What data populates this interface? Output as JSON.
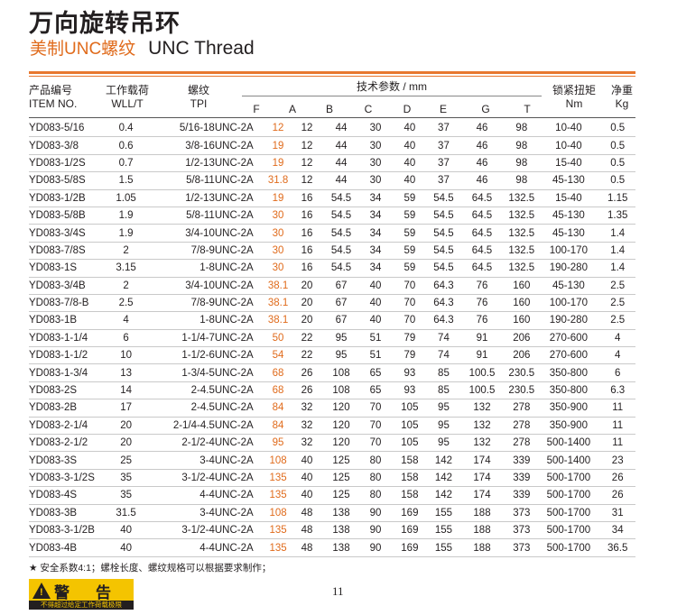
{
  "title": "万向旋转吊环",
  "subtitle_cn": "美制UNC螺纹",
  "subtitle_en": "UNC Thread",
  "headers": {
    "item_cn": "产品编号",
    "item_en": "ITEM NO.",
    "wll_cn": "工作载荷",
    "wll_en": "WLL/T",
    "tpi_cn": "螺纹",
    "tpi_en": "TPI",
    "params": "技术参数 / mm",
    "cols": [
      "F",
      "A",
      "B",
      "C",
      "D",
      "E",
      "G",
      "T"
    ],
    "torque_cn": "锁紧扭矩",
    "torque_en": "Nm",
    "weight_cn": "净重",
    "weight_en": "Kg"
  },
  "rows": [
    [
      "YD083-5/16",
      "0.4",
      "5/16-18UNC-2A",
      "12",
      "12",
      "44",
      "30",
      "40",
      "37",
      "46",
      "98",
      "10-40",
      "0.5"
    ],
    [
      "YD083-3/8",
      "0.6",
      "3/8-16UNC-2A",
      "19",
      "12",
      "44",
      "30",
      "40",
      "37",
      "46",
      "98",
      "10-40",
      "0.5"
    ],
    [
      "YD083-1/2S",
      "0.7",
      "1/2-13UNC-2A",
      "19",
      "12",
      "44",
      "30",
      "40",
      "37",
      "46",
      "98",
      "15-40",
      "0.5"
    ],
    [
      "YD083-5/8S",
      "1.5",
      "5/8-11UNC-2A",
      "31.8",
      "12",
      "44",
      "30",
      "40",
      "37",
      "46",
      "98",
      "45-130",
      "0.5"
    ],
    [
      "YD083-1/2B",
      "1.05",
      "1/2-13UNC-2A",
      "19",
      "16",
      "54.5",
      "34",
      "59",
      "54.5",
      "64.5",
      "132.5",
      "15-40",
      "1.15"
    ],
    [
      "YD083-5/8B",
      "1.9",
      "5/8-11UNC-2A",
      "30",
      "16",
      "54.5",
      "34",
      "59",
      "54.5",
      "64.5",
      "132.5",
      "45-130",
      "1.35"
    ],
    [
      "YD083-3/4S",
      "1.9",
      "3/4-10UNC-2A",
      "30",
      "16",
      "54.5",
      "34",
      "59",
      "54.5",
      "64.5",
      "132.5",
      "45-130",
      "1.4"
    ],
    [
      "YD083-7/8S",
      "2",
      "7/8-9UNC-2A",
      "30",
      "16",
      "54.5",
      "34",
      "59",
      "54.5",
      "64.5",
      "132.5",
      "100-170",
      "1.4"
    ],
    [
      "YD083-1S",
      "3.15",
      "1-8UNC-2A",
      "30",
      "16",
      "54.5",
      "34",
      "59",
      "54.5",
      "64.5",
      "132.5",
      "190-280",
      "1.4"
    ],
    [
      "YD083-3/4B",
      "2",
      "3/4-10UNC-2A",
      "38.1",
      "20",
      "67",
      "40",
      "70",
      "64.3",
      "76",
      "160",
      "45-130",
      "2.5"
    ],
    [
      "YD083-7/8-B",
      "2.5",
      "7/8-9UNC-2A",
      "38.1",
      "20",
      "67",
      "40",
      "70",
      "64.3",
      "76",
      "160",
      "100-170",
      "2.5"
    ],
    [
      "YD083-1B",
      "4",
      "1-8UNC-2A",
      "38.1",
      "20",
      "67",
      "40",
      "70",
      "64.3",
      "76",
      "160",
      "190-280",
      "2.5"
    ],
    [
      "YD083-1-1/4",
      "6",
      "1-1/4-7UNC-2A",
      "50",
      "22",
      "95",
      "51",
      "79",
      "74",
      "91",
      "206",
      "270-600",
      "4"
    ],
    [
      "YD083-1-1/2",
      "10",
      "1-1/2-6UNC-2A",
      "54",
      "22",
      "95",
      "51",
      "79",
      "74",
      "91",
      "206",
      "270-600",
      "4"
    ],
    [
      "YD083-1-3/4",
      "13",
      "1-3/4-5UNC-2A",
      "68",
      "26",
      "108",
      "65",
      "93",
      "85",
      "100.5",
      "230.5",
      "350-800",
      "6"
    ],
    [
      "YD083-2S",
      "14",
      "2-4.5UNC-2A",
      "68",
      "26",
      "108",
      "65",
      "93",
      "85",
      "100.5",
      "230.5",
      "350-800",
      "6.3"
    ],
    [
      "YD083-2B",
      "17",
      "2-4.5UNC-2A",
      "84",
      "32",
      "120",
      "70",
      "105",
      "95",
      "132",
      "278",
      "350-900",
      "11"
    ],
    [
      "YD083-2-1/4",
      "20",
      "2-1/4-4.5UNC-2A",
      "84",
      "32",
      "120",
      "70",
      "105",
      "95",
      "132",
      "278",
      "350-900",
      "11"
    ],
    [
      "YD083-2-1/2",
      "20",
      "2-1/2-4UNC-2A",
      "95",
      "32",
      "120",
      "70",
      "105",
      "95",
      "132",
      "278",
      "500-1400",
      "11"
    ],
    [
      "YD083-3S",
      "25",
      "3-4UNC-2A",
      "108",
      "40",
      "125",
      "80",
      "158",
      "142",
      "174",
      "339",
      "500-1400",
      "23"
    ],
    [
      "YD083-3-1/2S",
      "35",
      "3-1/2-4UNC-2A",
      "135",
      "40",
      "125",
      "80",
      "158",
      "142",
      "174",
      "339",
      "500-1700",
      "26"
    ],
    [
      "YD083-4S",
      "35",
      "4-4UNC-2A",
      "135",
      "40",
      "125",
      "80",
      "158",
      "142",
      "174",
      "339",
      "500-1700",
      "26"
    ],
    [
      "YD083-3B",
      "31.5",
      "3-4UNC-2A",
      "108",
      "48",
      "138",
      "90",
      "169",
      "155",
      "188",
      "373",
      "500-1700",
      "31"
    ],
    [
      "YD083-3-1/2B",
      "40",
      "3-1/2-4UNC-2A",
      "135",
      "48",
      "138",
      "90",
      "169",
      "155",
      "188",
      "373",
      "500-1700",
      "34"
    ],
    [
      "YD083-4B",
      "40",
      "4-4UNC-2A",
      "135",
      "48",
      "138",
      "90",
      "169",
      "155",
      "188",
      "373",
      "500-1700",
      "36.5"
    ]
  ],
  "footnote": "★ 安全系数4:1；螺栓长度、螺纹规格可以根据要求制作；",
  "page_number": "11",
  "warning_title": "警　告",
  "warning_text": "不得超过给定工作荷载极限",
  "colors": {
    "accent": "#e8772e",
    "warning_bg": "#f4c400"
  }
}
